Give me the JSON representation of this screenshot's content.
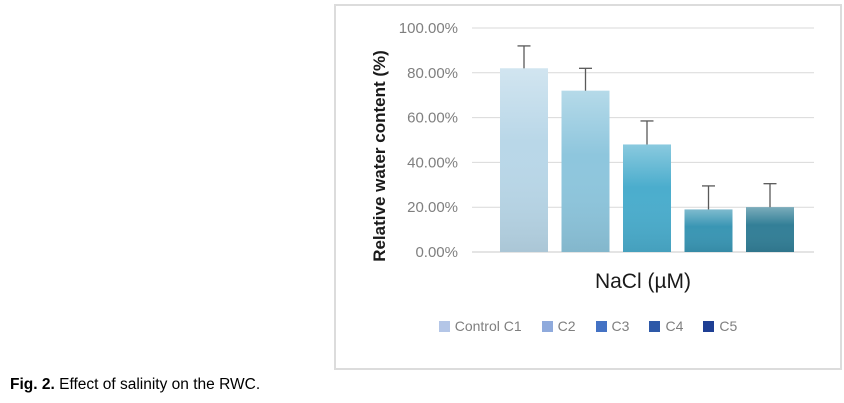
{
  "figure": {
    "caption_label": "Fig. 2.",
    "caption_text": " Effect of salinity on the RWC."
  },
  "chart_data": {
    "type": "bar",
    "title": "",
    "xlabel": "NaCl (µM)",
    "ylabel": "Relative water content (%)",
    "categories": [
      "Control C1",
      "C2",
      "C3",
      "C4",
      "C5"
    ],
    "values": [
      82,
      72,
      48,
      19,
      20
    ],
    "error_plus": [
      10,
      10,
      10.5,
      10.5,
      10.5
    ],
    "unit": "%",
    "ylim": [
      0,
      100
    ],
    "y_tick_step": 20,
    "y_tick_labels": [
      "0.00%",
      "20.00%",
      "40.00%",
      "60.00%",
      "80.00%",
      "100.00%"
    ],
    "grid": "horizontal",
    "legend_position": "bottom",
    "bar_colors": [
      "#b9d7e8",
      "#8ec6dd",
      "#4badcd",
      "#3a96b4",
      "#337f97"
    ],
    "legend_marker_colors": [
      "#b4c6e7",
      "#8faadc",
      "#4472c4",
      "#2e59a8",
      "#1e3f94"
    ],
    "axis_text_color": "#7f7f7f",
    "gridline_color": "#d9d9d9",
    "baseline_color": "#c9c9c9",
    "error_bar_color": "#595959"
  }
}
